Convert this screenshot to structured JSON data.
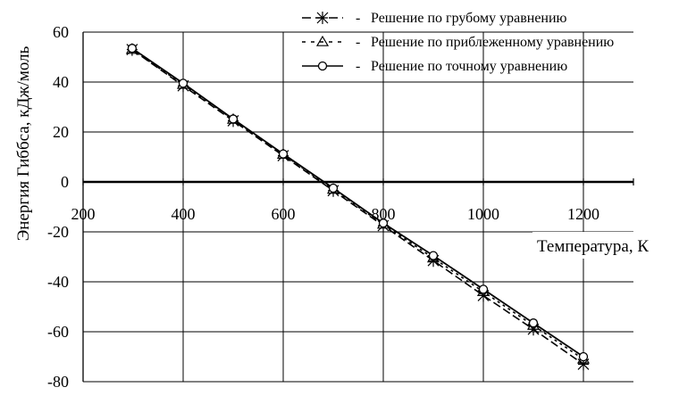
{
  "chart_data": {
    "type": "line",
    "xlabel": "Температура, К",
    "ylabel": "Энергия Гиббса, кДж/моль",
    "xlim": [
      200,
      1300
    ],
    "ylim": [
      -80,
      60
    ],
    "xticks": [
      200,
      400,
      600,
      800,
      1000,
      1200
    ],
    "xtick_labels": [
      "200",
      "400",
      "600",
      "800",
      "1000",
      "1200"
    ],
    "yticks": [
      -80,
      -60,
      -40,
      -20,
      0,
      20,
      40,
      60
    ],
    "ytick_labels": [
      "-80",
      "-60",
      "-40",
      "-20",
      "0",
      "20",
      "40",
      "60"
    ],
    "grid": true,
    "legend_position": "top-right",
    "x": [
      298,
      400,
      500,
      600,
      700,
      800,
      900,
      1000,
      1100,
      1200
    ],
    "series": [
      {
        "name": "Решение по грубому уравнению",
        "marker": "asterisk",
        "dash": "dashed",
        "values": [
          53,
          38.5,
          24.5,
          10.5,
          -3.5,
          -17.5,
          -31.5,
          -45.5,
          -59,
          -73
        ]
      },
      {
        "name": "Решение по приблеженному уравнению",
        "marker": "triangle",
        "dash": "dotted",
        "values": [
          53,
          39,
          25,
          11,
          -3,
          -17,
          -30.5,
          -44,
          -57.5,
          -71
        ]
      },
      {
        "name": "Решение по точному уравнению",
        "marker": "circle",
        "dash": "solid",
        "values": [
          53.5,
          39.5,
          25.2,
          11.2,
          -2.5,
          -16.5,
          -29.5,
          -43,
          -56.5,
          -70
        ]
      }
    ],
    "legend": {
      "separator": "-"
    }
  }
}
